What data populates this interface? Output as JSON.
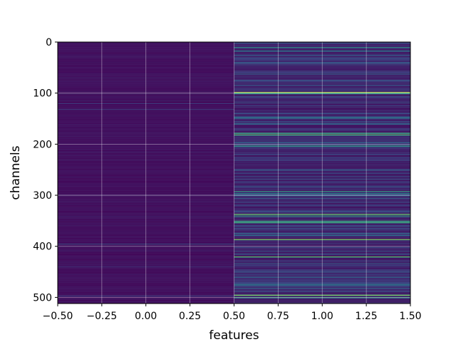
{
  "chart_data": {
    "type": "heatmap",
    "title": "",
    "xlabel": "features",
    "ylabel": "channels",
    "xlim": [
      -0.5,
      1.5
    ],
    "ylim": [
      512,
      0
    ],
    "x_ticks": [
      "−0.50",
      "−0.25",
      "0.00",
      "0.25",
      "0.50",
      "0.75",
      "1.00",
      "1.25",
      "1.50"
    ],
    "y_ticks": [
      "0",
      "100",
      "200",
      "300",
      "400",
      "500"
    ],
    "columns": [
      0,
      1
    ],
    "rows": 512,
    "colormap": "viridis",
    "grid": true,
    "col0_bright_rows": [
      {
        "row": 120,
        "v": 0.25
      },
      {
        "row": 131,
        "v": 0.2
      },
      {
        "row": 395,
        "v": 0.3
      },
      {
        "row": 440,
        "v": 0.2
      },
      {
        "row": 497,
        "v": 0.25
      }
    ],
    "col1_bright_rows": [
      {
        "row": 10,
        "v": 0.55
      },
      {
        "row": 17,
        "v": 0.5
      },
      {
        "row": 25,
        "v": 0.35
      },
      {
        "row": 40,
        "v": 0.35
      },
      {
        "row": 62,
        "v": 0.35
      },
      {
        "row": 98,
        "v": 0.95
      },
      {
        "row": 100,
        "v": 0.7
      },
      {
        "row": 148,
        "v": 0.5
      },
      {
        "row": 160,
        "v": 0.4
      },
      {
        "row": 178,
        "v": 0.7
      },
      {
        "row": 181,
        "v": 0.8
      },
      {
        "row": 203,
        "v": 0.6
      },
      {
        "row": 250,
        "v": 0.35
      },
      {
        "row": 292,
        "v": 0.6
      },
      {
        "row": 296,
        "v": 0.5
      },
      {
        "row": 300,
        "v": 0.4
      },
      {
        "row": 337,
        "v": 0.85
      },
      {
        "row": 340,
        "v": 0.6
      },
      {
        "row": 350,
        "v": 0.7
      },
      {
        "row": 353,
        "v": 0.7
      },
      {
        "row": 378,
        "v": 0.4
      },
      {
        "row": 386,
        "v": 0.9
      },
      {
        "row": 420,
        "v": 0.8
      },
      {
        "row": 460,
        "v": 0.4
      },
      {
        "row": 475,
        "v": 0.5
      },
      {
        "row": 495,
        "v": 0.9
      },
      {
        "row": 500,
        "v": 0.6
      }
    ]
  }
}
